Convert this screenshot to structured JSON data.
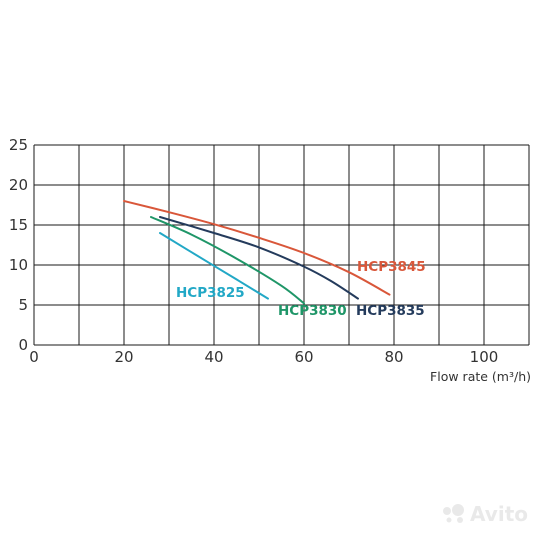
{
  "chart_data": {
    "type": "line",
    "xlabel": "Flow rate (m³/h)",
    "ylabel": "",
    "xlim": [
      0,
      110
    ],
    "ylim": [
      0,
      25
    ],
    "xticks": [
      0,
      20,
      40,
      60,
      80,
      100
    ],
    "yticks": [
      0,
      5,
      10,
      15,
      20,
      25
    ],
    "grid": true,
    "series": [
      {
        "name": "HCP3845",
        "color": "#d9573a",
        "x": [
          20,
          30,
          40,
          50,
          60,
          70,
          79
        ],
        "y": [
          18,
          16.6,
          15.1,
          13.4,
          11.5,
          9.1,
          6.3
        ]
      },
      {
        "name": "HCP3835",
        "color": "#243b5c",
        "x": [
          28,
          40,
          50,
          60,
          66,
          72
        ],
        "y": [
          16,
          14,
          12.2,
          9.8,
          8.0,
          5.8
        ]
      },
      {
        "name": "HCP3830",
        "color": "#1f9668",
        "x": [
          26,
          35,
          45,
          55,
          60
        ],
        "y": [
          16,
          13.8,
          10.8,
          7.4,
          5.2
        ]
      },
      {
        "name": "HCP3825",
        "color": "#22a8c6",
        "x": [
          28,
          35,
          45,
          52
        ],
        "y": [
          14,
          11.6,
          8.2,
          5.8
        ]
      }
    ]
  },
  "watermark": {
    "text": "Avito"
  }
}
